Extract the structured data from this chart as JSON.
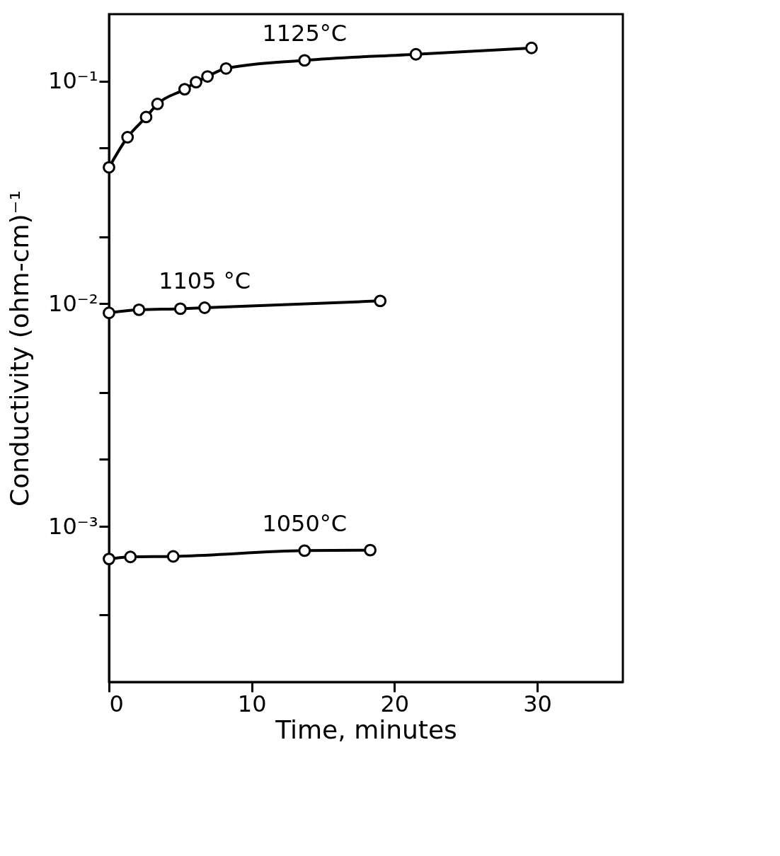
{
  "chart_data": {
    "type": "line",
    "xlabel": "Time, minutes",
    "ylabel": "Conductivity (ohm-cm)⁻¹",
    "log": "y",
    "grid": false,
    "legend": false,
    "marker": "circle",
    "line_style": "solid",
    "xlim": [
      0,
      36
    ],
    "xticks": [
      0,
      10,
      20,
      30
    ],
    "ylim": [
      0.0002,
      0.2
    ],
    "yticks": [
      {
        "value": 0.1,
        "label": "10⁻¹"
      },
      {
        "value": 0.05,
        "label": null
      },
      {
        "value": 0.02,
        "label": null
      },
      {
        "value": 0.01,
        "label": "10⁻²"
      },
      {
        "value": 0.004,
        "label": null
      },
      {
        "value": 0.002,
        "label": null
      },
      {
        "value": 0.001,
        "label": "10⁻³"
      },
      {
        "value": 0.0004,
        "label": null
      }
    ],
    "series": [
      {
        "name": "1125°C",
        "color": "#000000",
        "x": [
          0,
          1.3,
          2.6,
          3.4,
          5.3,
          6.1,
          6.9,
          8.2,
          13.7,
          21.5,
          29.6
        ],
        "values": [
          0.041,
          0.056,
          0.069,
          0.079,
          0.092,
          0.099,
          0.105,
          0.114,
          0.124,
          0.132,
          0.141
        ]
      },
      {
        "name": "1105 °C",
        "color": "#000000",
        "x": [
          0,
          2.1,
          5,
          6.7,
          19
        ],
        "values": [
          0.0091,
          0.0094,
          0.0095,
          0.0096,
          0.0103
        ]
      },
      {
        "name": "1050°C",
        "color": "#000000",
        "x": [
          0,
          1.5,
          4.5,
          13.7,
          18.3
        ],
        "values": [
          0.000714,
          0.000729,
          0.000733,
          0.000778,
          0.000782
        ]
      }
    ]
  }
}
